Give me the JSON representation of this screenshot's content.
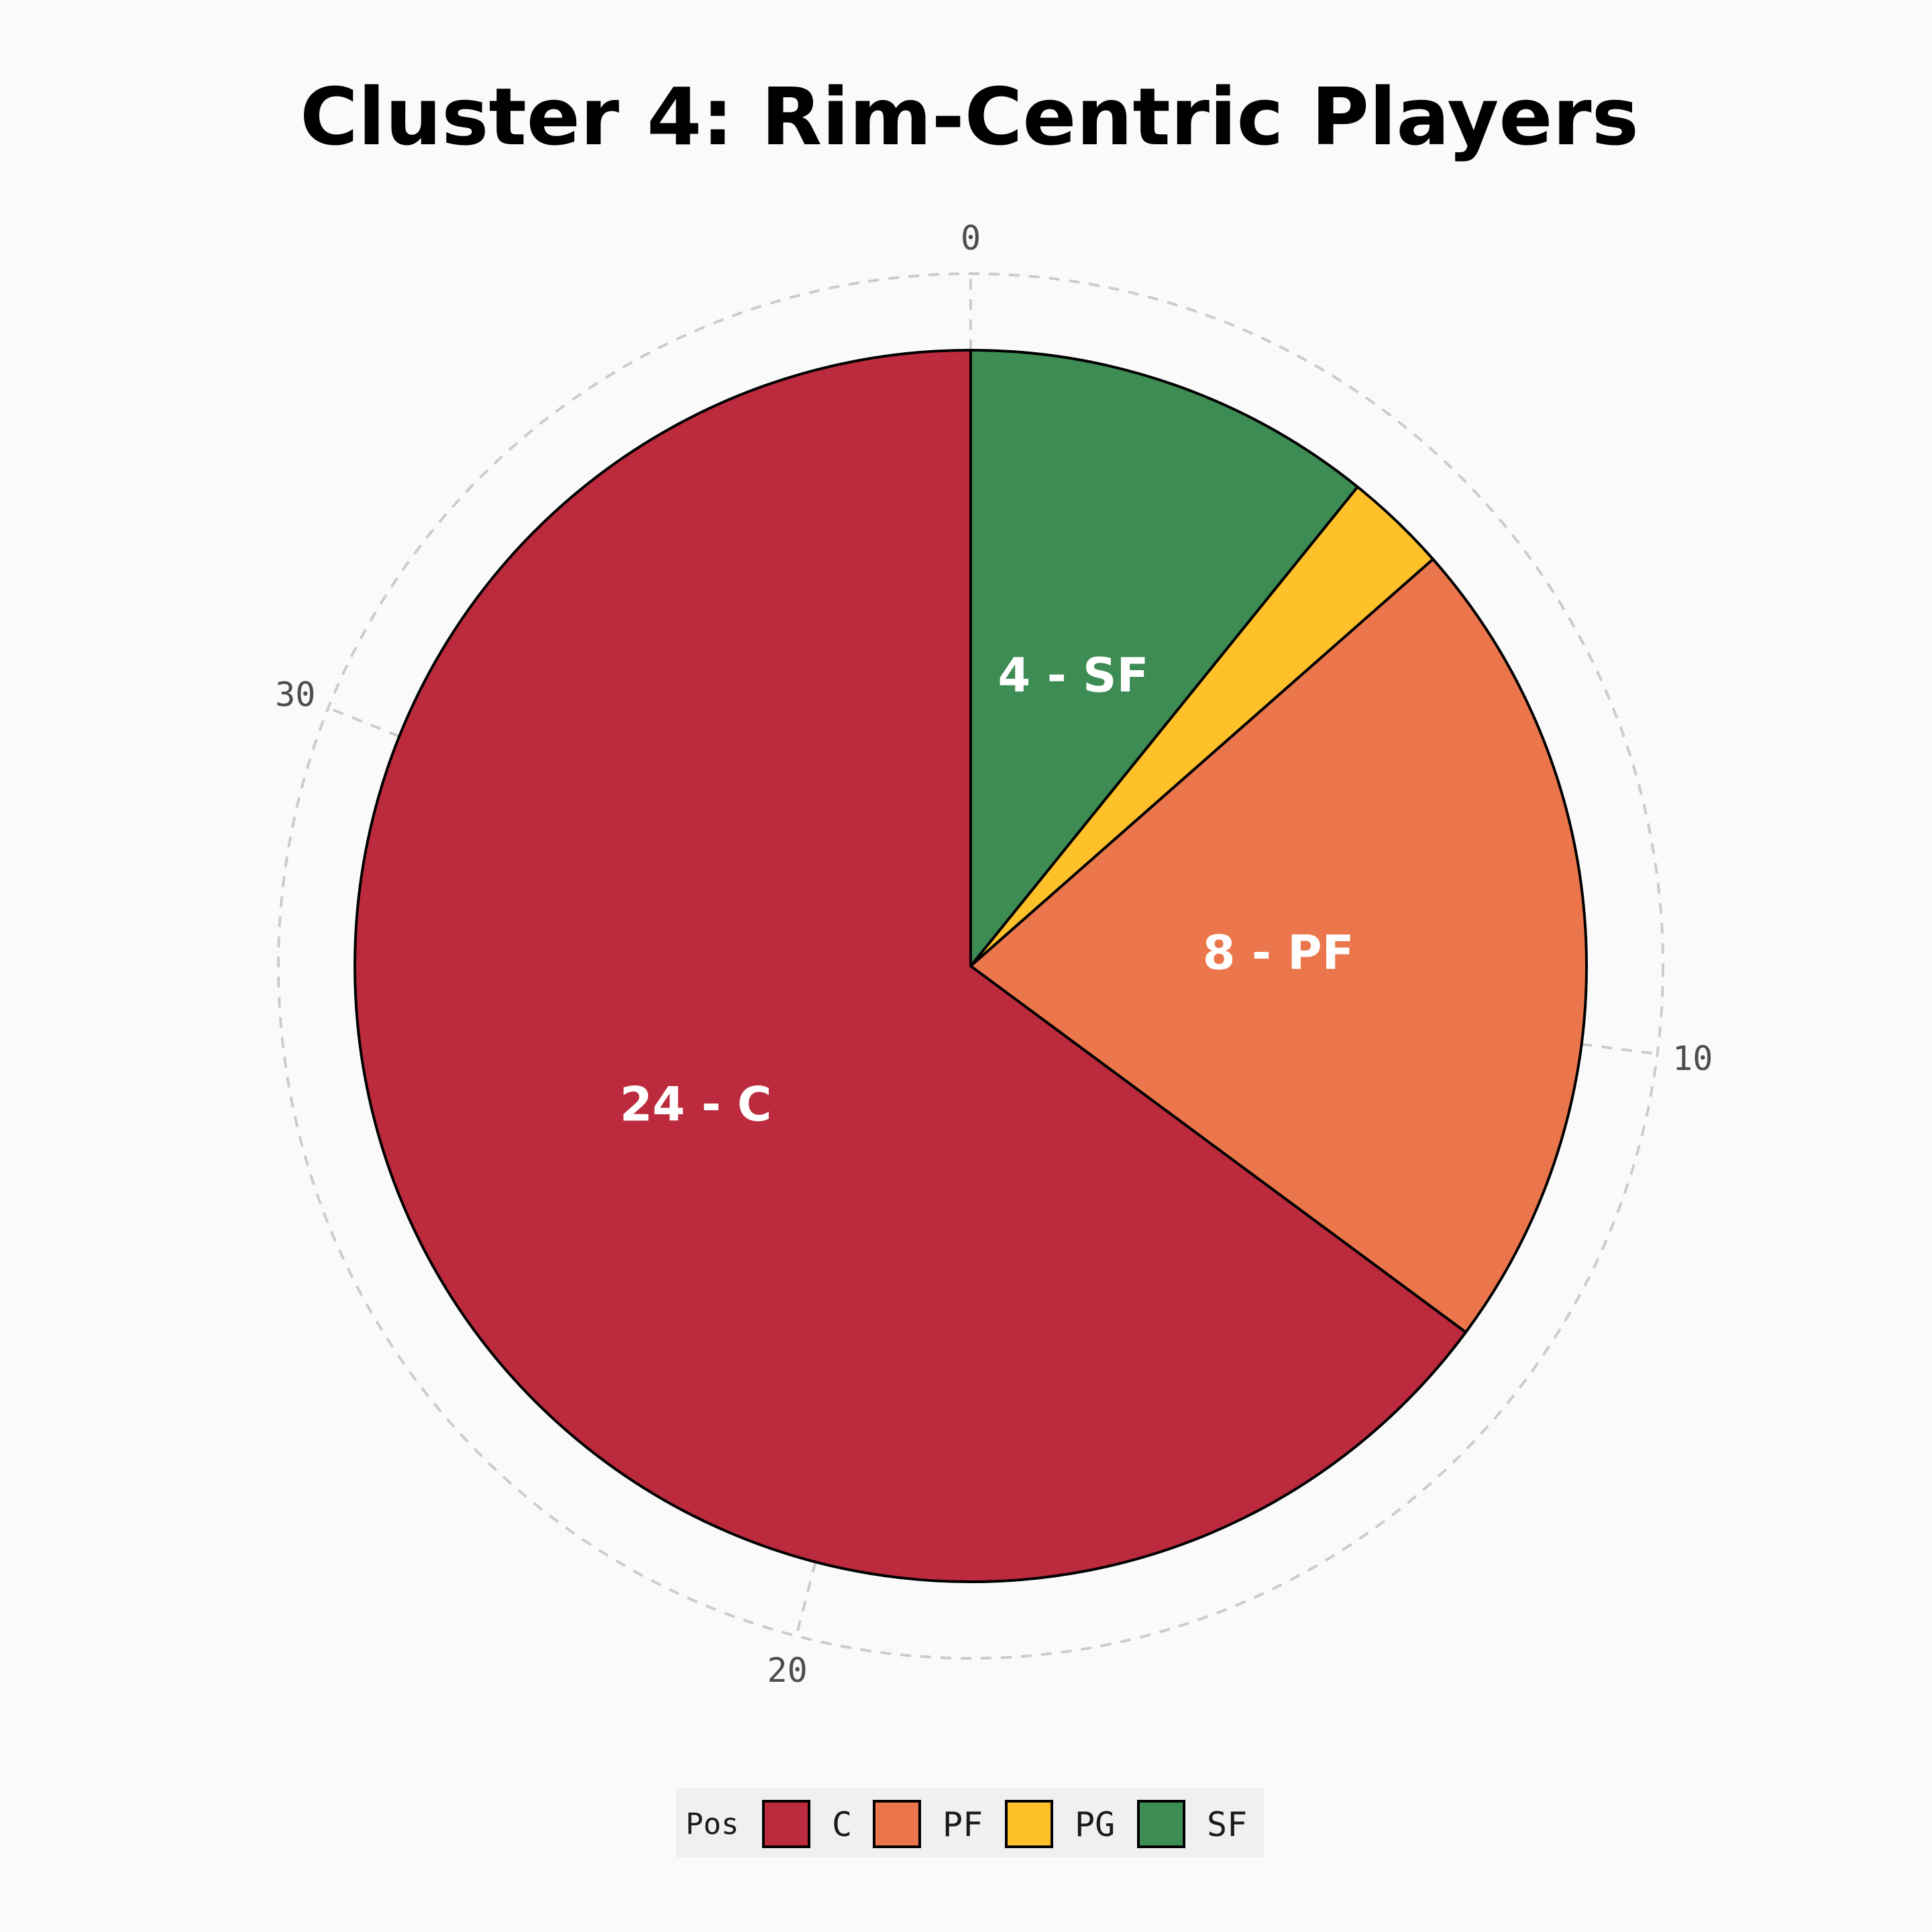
{
  "chart_data": {
    "type": "pie",
    "title": "Cluster 4: Rim-Centric Players",
    "slices": [
      {
        "label": "C",
        "value": 24,
        "color": "#BC2A3D",
        "data_label": "24 - C"
      },
      {
        "label": "PF",
        "value": 8,
        "color": "#EB764B",
        "data_label": "8 - PF"
      },
      {
        "label": "PG",
        "value": 1,
        "color": "#FFC12A",
        "data_label": ""
      },
      {
        "label": "SF",
        "value": 4,
        "color": "#3D8C54",
        "data_label": "4 - SF"
      }
    ],
    "total": 37,
    "angular_ticks": [
      "0",
      "10",
      "20",
      "30"
    ],
    "legend": {
      "title": "Pos",
      "position": "bottom",
      "items": [
        "C",
        "PF",
        "PG",
        "SF"
      ]
    },
    "grid": true
  }
}
